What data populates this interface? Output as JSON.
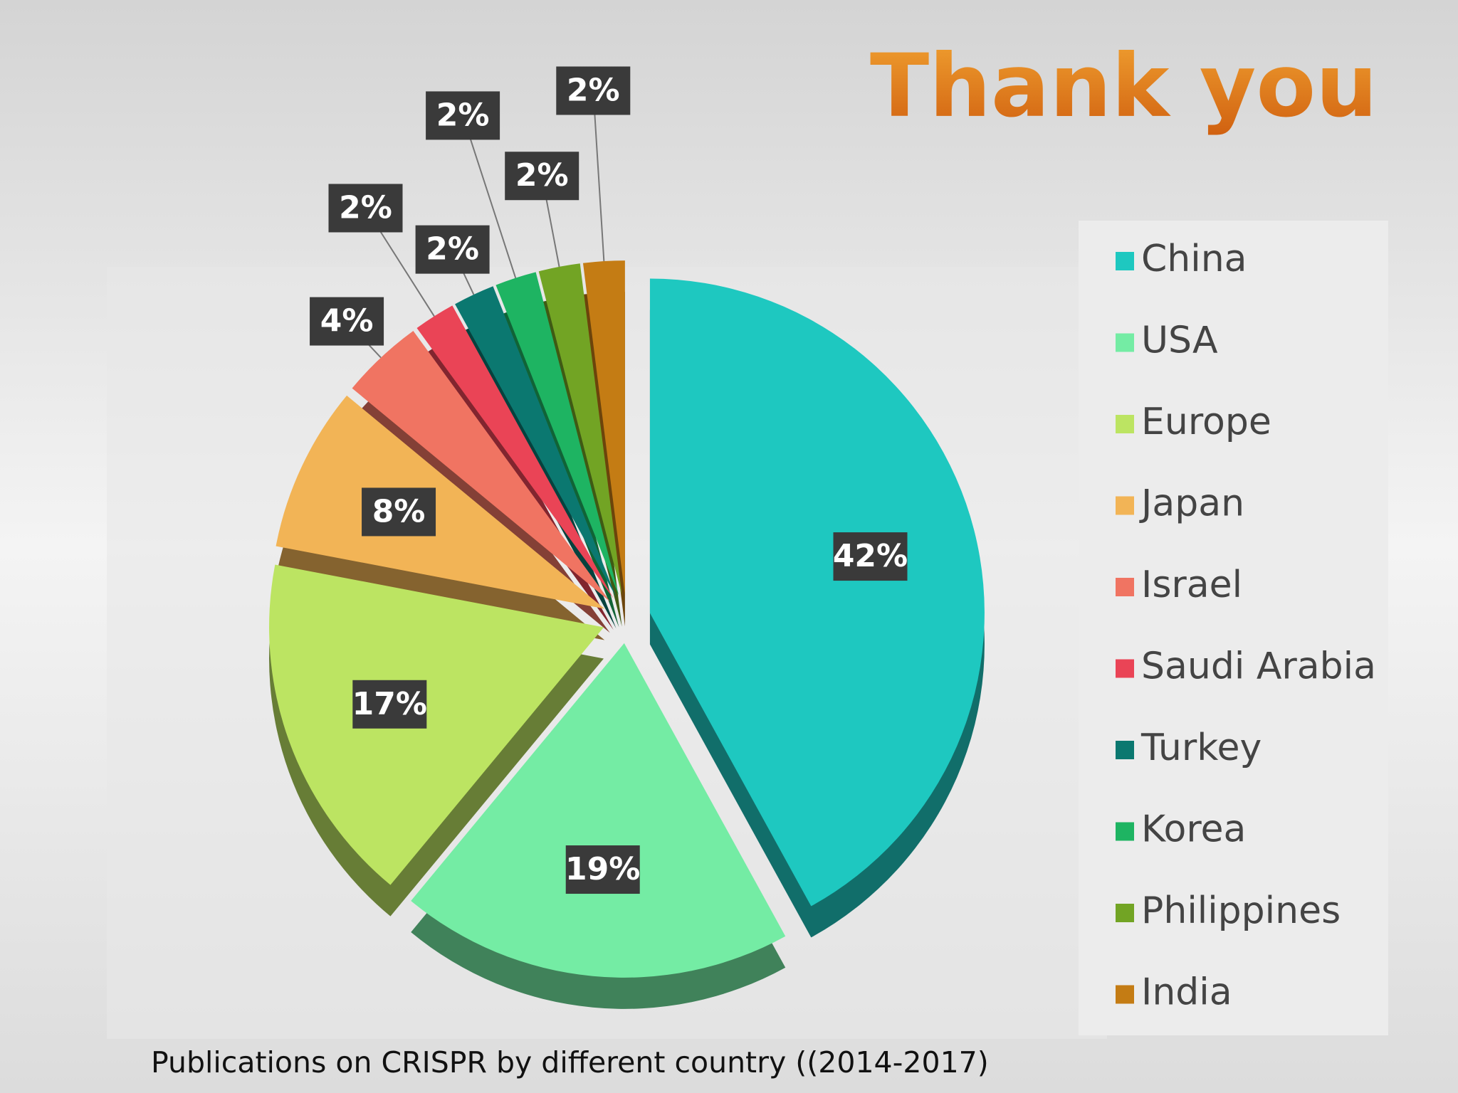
{
  "chart_data": {
    "type": "pie",
    "title": "Thank you",
    "caption": "Publications on CRISPR by different country ((2014-2017)",
    "categories": [
      "China",
      "USA",
      "Europe",
      "Japan",
      "Israel",
      "Saudi Arabia",
      "Turkey",
      "Korea",
      "Philippines",
      "India"
    ],
    "values": [
      42,
      19,
      17,
      8,
      4,
      2,
      2,
      2,
      2,
      2
    ],
    "value_labels": [
      "42%",
      "19%",
      "17%",
      "8%",
      "4%",
      "2%",
      "2%",
      "2%",
      "2%",
      "2%"
    ],
    "colors": [
      "#1ec8c0",
      "#74eca4",
      "#bce462",
      "#f2b456",
      "#f07462",
      "#ea4456",
      "#0b7870",
      "#1eb462",
      "#72a424",
      "#c47c14"
    ],
    "legend": "right"
  }
}
